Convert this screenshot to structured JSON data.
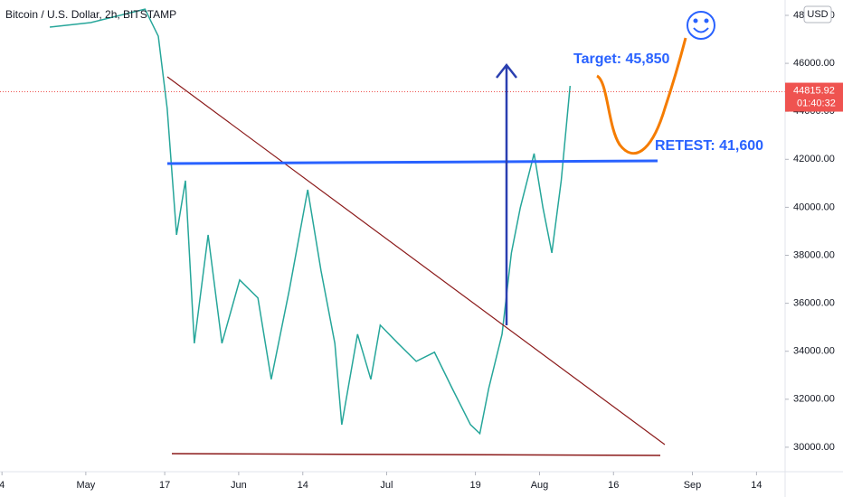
{
  "chart_data": {
    "type": "line",
    "title": "Bitcoin / U.S. Dollar, 2h, BITSTAMP",
    "currency": "USD",
    "x": [
      113.7,
      122,
      133,
      135.7,
      137.5,
      139.4,
      141.2,
      143,
      145.8,
      148.6,
      152.2,
      155.9,
      158.6,
      162.3,
      166,
      168.7,
      171.5,
      172.9,
      176.1,
      178.8,
      180.7,
      184.3,
      188,
      191.7,
      195.3,
      199,
      200.9,
      202.7,
      205.4,
      207.3,
      209.1,
      211.9,
      213.7,
      215.5,
      217.4,
      219.2
    ],
    "values": [
      47510,
      47700,
      48260,
      47130,
      44120,
      38850,
      41110,
      34330,
      38850,
      34330,
      36970,
      36220,
      32830,
      36590,
      40730,
      37350,
      34330,
      30940,
      34710,
      32830,
      35090,
      34330,
      33580,
      33960,
      32450,
      30940,
      30570,
      32450,
      34710,
      38100,
      39980,
      42240,
      39980,
      38100,
      41110,
      45060
    ],
    "color": "#26a69a",
    "xlim": [
      103.6,
      262.8
    ],
    "ylim": [
      28980,
      48640
    ],
    "xticks": [
      {
        "value": 104,
        "label": "4"
      },
      {
        "value": 121,
        "label": "May"
      },
      {
        "value": 137,
        "label": "17"
      },
      {
        "value": 152,
        "label": "Jun"
      },
      {
        "value": 165,
        "label": "14"
      },
      {
        "value": 182,
        "label": "Jul"
      },
      {
        "value": 200,
        "label": "19"
      },
      {
        "value": 213,
        "label": "Aug"
      },
      {
        "value": 228,
        "label": "16"
      },
      {
        "value": 244,
        "label": "Sep"
      },
      {
        "value": 257,
        "label": "14"
      }
    ],
    "yticks": [
      {
        "value": 30000,
        "label": "30000.00"
      },
      {
        "value": 32000,
        "label": "32000.00"
      },
      {
        "value": 34000,
        "label": "34000.00"
      },
      {
        "value": 36000,
        "label": "36000.00"
      },
      {
        "value": 38000,
        "label": "38000.00"
      },
      {
        "value": 40000,
        "label": "40000.00"
      },
      {
        "value": 42000,
        "label": "42000.00"
      },
      {
        "value": 44000,
        "label": "44000.00"
      },
      {
        "value": 46000,
        "label": "46000.00"
      },
      {
        "value": 48000,
        "label": "48000.00"
      }
    ],
    "last_price": 44815.92,
    "last_price_color": "#ef5350",
    "countdown": "01:40:32",
    "annotations": [
      "Target: 45,850",
      "RETEST: 41,600"
    ]
  }
}
